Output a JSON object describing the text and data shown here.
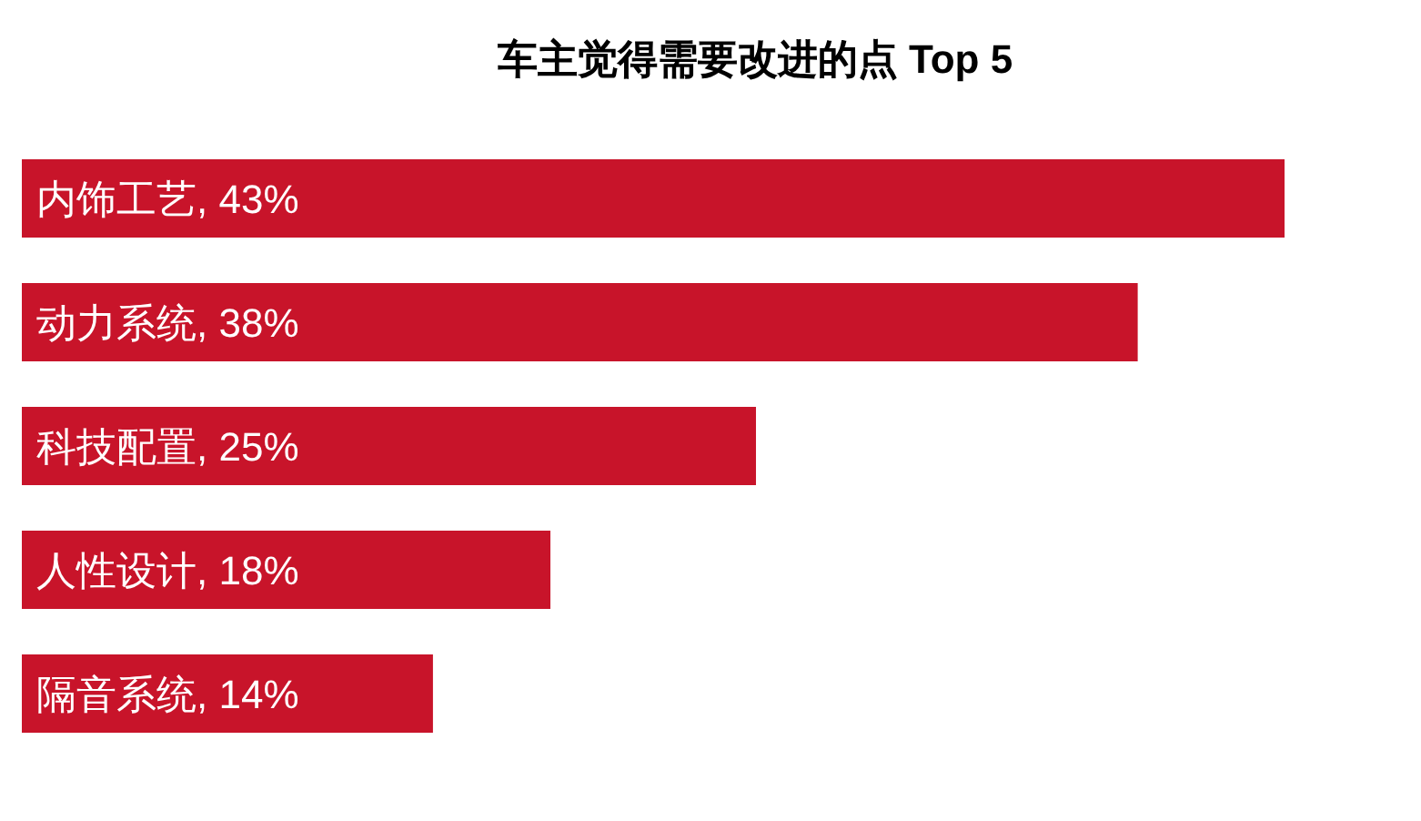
{
  "chart_data": {
    "type": "bar",
    "orientation": "horizontal",
    "title": "车主觉得需要改进的点 Top 5",
    "color": "#c8142a",
    "categories": [
      "内饰工艺",
      "动力系统",
      "科技配置",
      "人性设计",
      "隔音系统"
    ],
    "values": [
      43,
      38,
      25,
      18,
      14
    ],
    "value_labels": [
      ", 43%",
      ", 38%",
      ", 25%",
      ", 18%",
      ", 14%"
    ]
  }
}
